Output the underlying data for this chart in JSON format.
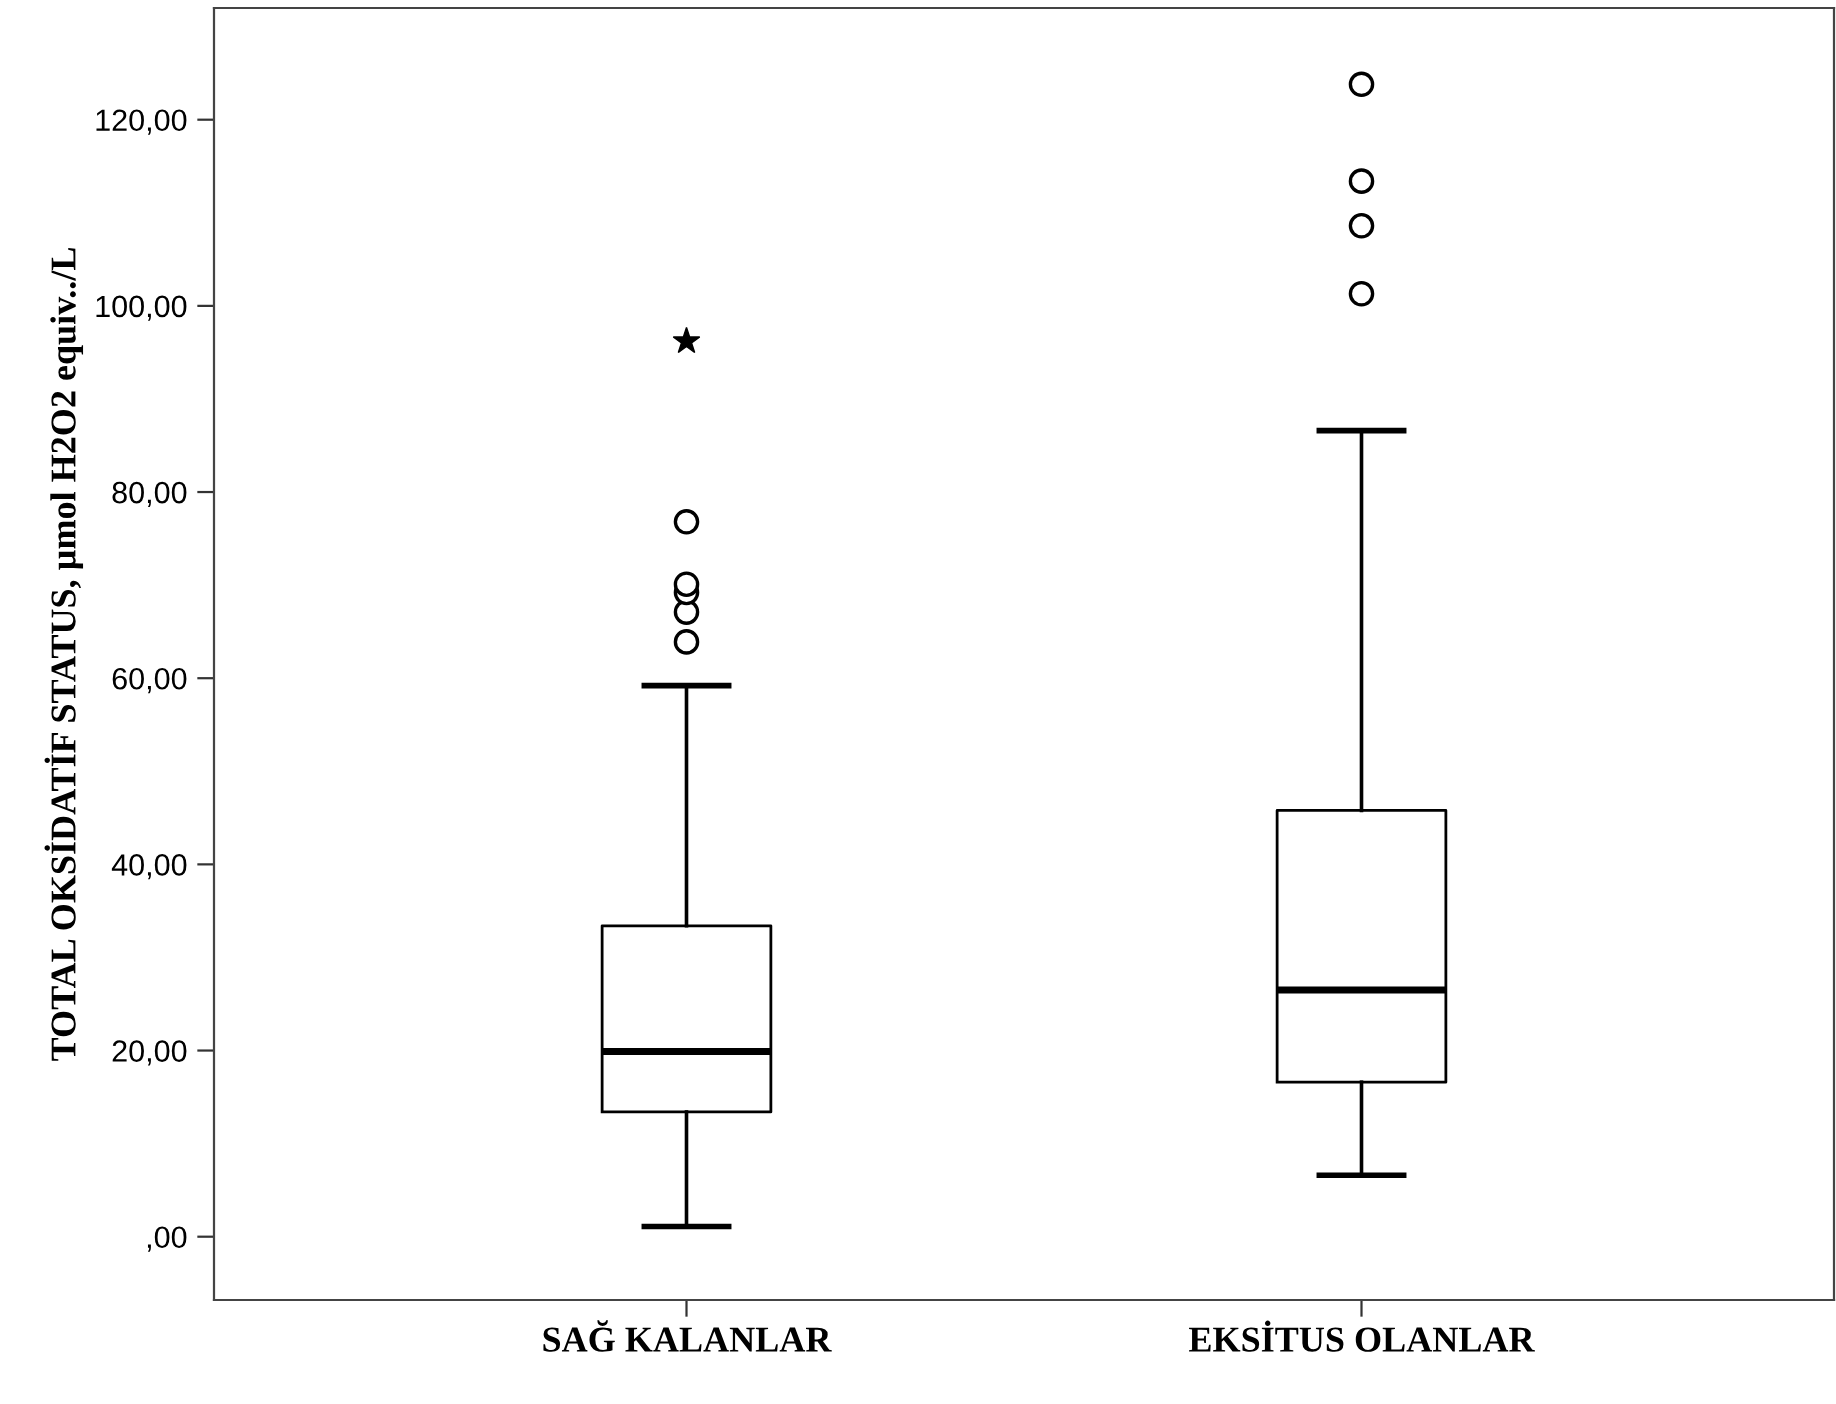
{
  "chart_data": {
    "type": "box",
    "ylabel": "TOTAL OKSİDATİF STATUS, µmol H2O2 equiv../L",
    "categories": [
      "SAĞ KALANLAR",
      "EKSİTUS OLANLAR"
    ],
    "boxes": [
      {
        "low": 1.1,
        "q1": 13.4,
        "median": 19.9,
        "q3": 33.4,
        "high": 59.2,
        "outliers": [
          63.9,
          67.1,
          69.2,
          70.1,
          76.8
        ]
      },
      {
        "low": 6.6,
        "q1": 16.6,
        "median": 26.5,
        "q3": 45.8,
        "high": 86.6,
        "outliers": [
          101.3,
          108.6,
          113.4,
          123.8
        ]
      }
    ],
    "series": [
      {
        "type": "scatter",
        "marker": "star",
        "color": "#000000",
        "x": [
          "SAĞ KALANLAR"
        ],
        "values": [
          96.2
        ]
      }
    ],
    "ylim": [
      -6.8,
      132
    ],
    "yticks": [
      {
        "value": 0,
        "label": ",00"
      },
      {
        "value": 20,
        "label": "20,00"
      },
      {
        "value": 40,
        "label": "40,00"
      },
      {
        "value": 60,
        "label": "60,00"
      },
      {
        "value": 80,
        "label": "80,00"
      },
      {
        "value": 100,
        "label": "100,00"
      },
      {
        "value": 120,
        "label": "120,00"
      }
    ],
    "grid": false
  }
}
